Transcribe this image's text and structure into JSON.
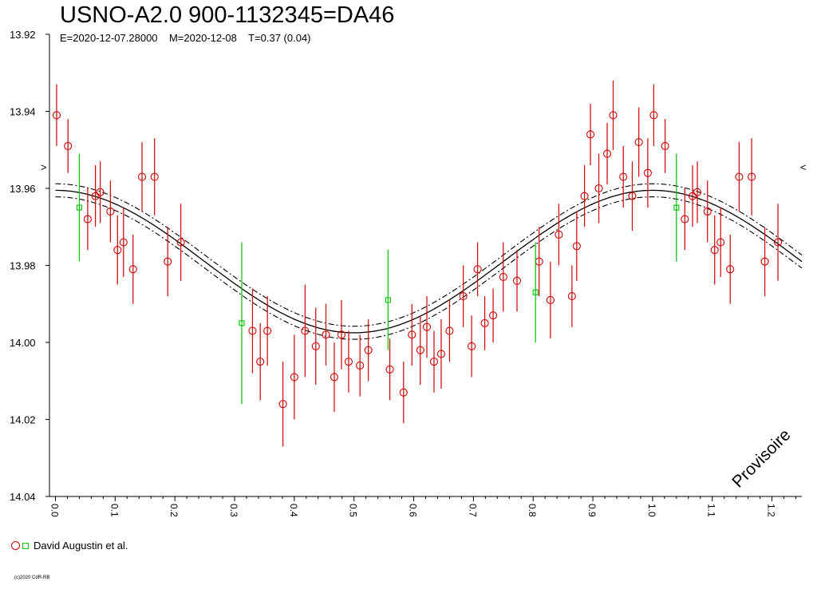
{
  "header": {
    "title": "USNO-A2.0 900-1132345=DA46",
    "subtitle": "E=2020-12-07.28000    M=2020-12-08    T=0.37 (0.04)"
  },
  "legend": {
    "label": "David Augustin et al."
  },
  "watermark": "Provisoire",
  "copyright": "(c)2020 CdR-RB",
  "edge_marks": {
    "left": ">",
    "right": "<"
  },
  "colors": {
    "obs_red": "#d00000",
    "obs_green": "#00c000",
    "curve": "#000000"
  },
  "chart_data": {
    "type": "scatter",
    "title": "USNO-A2.0 900-1132345=DA46",
    "xlabel": "",
    "ylabel": "",
    "xlim": [
      -0.01,
      1.25
    ],
    "ylim": [
      13.92,
      14.04
    ],
    "y_inverted": true,
    "x_ticks": [
      "0.0",
      "0.1",
      "0.2",
      "0.3",
      "0.4",
      "0.5",
      "0.6",
      "0.7",
      "0.8",
      "0.9",
      "1.0",
      "1.1",
      "1.2"
    ],
    "y_ticks": [
      "13.92",
      "13.94",
      "13.96",
      "13.98",
      "14.00",
      "14.02",
      "14.04"
    ],
    "grid": false,
    "legend_position": "bottom-left",
    "fit": {
      "type": "sinusoid",
      "mean": 13.979,
      "amplitude": 0.0185,
      "max_phase": 1.0,
      "band": 0.0017,
      "note": "solid fit with dash-dot confidence bands"
    },
    "series": [
      {
        "name": "David Augustin et al.",
        "marker": "circle",
        "color": "#d00000",
        "points": [
          {
            "x": 0.002,
            "y": 13.941,
            "err": 0.008
          },
          {
            "x": 0.021,
            "y": 13.949,
            "err": 0.007
          },
          {
            "x": 0.054,
            "y": 13.968,
            "err": 0.008
          },
          {
            "x": 0.067,
            "y": 13.962,
            "err": 0.008
          },
          {
            "x": 0.075,
            "y": 13.961,
            "err": 0.008
          },
          {
            "x": 0.092,
            "y": 13.966,
            "err": 0.008
          },
          {
            "x": 0.104,
            "y": 13.976,
            "err": 0.009
          },
          {
            "x": 0.114,
            "y": 13.974,
            "err": 0.009
          },
          {
            "x": 0.13,
            "y": 13.981,
            "err": 0.009
          },
          {
            "x": 0.145,
            "y": 13.957,
            "err": 0.009
          },
          {
            "x": 0.166,
            "y": 13.957,
            "err": 0.01
          },
          {
            "x": 0.188,
            "y": 13.979,
            "err": 0.009
          },
          {
            "x": 0.21,
            "y": 13.974,
            "err": 0.01
          },
          {
            "x": 0.33,
            "y": 13.997,
            "err": 0.011
          },
          {
            "x": 0.343,
            "y": 14.005,
            "err": 0.01
          },
          {
            "x": 0.355,
            "y": 13.997,
            "err": 0.009
          },
          {
            "x": 0.381,
            "y": 14.016,
            "err": 0.011
          },
          {
            "x": 0.4,
            "y": 14.009,
            "err": 0.011
          },
          {
            "x": 0.418,
            "y": 13.997,
            "err": 0.012
          },
          {
            "x": 0.436,
            "y": 14.001,
            "err": 0.01
          },
          {
            "x": 0.453,
            "y": 13.998,
            "err": 0.008
          },
          {
            "x": 0.467,
            "y": 14.009,
            "err": 0.009
          },
          {
            "x": 0.479,
            "y": 13.998,
            "err": 0.009
          },
          {
            "x": 0.491,
            "y": 14.005,
            "err": 0.008
          },
          {
            "x": 0.51,
            "y": 14.006,
            "err": 0.008
          },
          {
            "x": 0.524,
            "y": 14.002,
            "err": 0.008
          },
          {
            "x": 0.56,
            "y": 14.007,
            "err": 0.008
          },
          {
            "x": 0.583,
            "y": 14.013,
            "err": 0.008
          },
          {
            "x": 0.597,
            "y": 13.998,
            "err": 0.008
          },
          {
            "x": 0.611,
            "y": 14.002,
            "err": 0.009
          },
          {
            "x": 0.622,
            "y": 13.996,
            "err": 0.008
          },
          {
            "x": 0.634,
            "y": 14.005,
            "err": 0.008
          },
          {
            "x": 0.646,
            "y": 14.003,
            "err": 0.009
          },
          {
            "x": 0.66,
            "y": 13.997,
            "err": 0.008
          },
          {
            "x": 0.683,
            "y": 13.988,
            "err": 0.008
          },
          {
            "x": 0.697,
            "y": 14.001,
            "err": 0.008
          },
          {
            "x": 0.707,
            "y": 13.981,
            "err": 0.007
          },
          {
            "x": 0.719,
            "y": 13.995,
            "err": 0.007
          },
          {
            "x": 0.733,
            "y": 13.993,
            "err": 0.007
          },
          {
            "x": 0.75,
            "y": 13.983,
            "err": 0.009
          },
          {
            "x": 0.773,
            "y": 13.984,
            "err": 0.008
          },
          {
            "x": 0.81,
            "y": 13.979,
            "err": 0.009
          },
          {
            "x": 0.829,
            "y": 13.989,
            "err": 0.01
          },
          {
            "x": 0.843,
            "y": 13.972,
            "err": 0.008
          },
          {
            "x": 0.865,
            "y": 13.988,
            "err": 0.008
          },
          {
            "x": 0.873,
            "y": 13.975,
            "err": 0.009
          },
          {
            "x": 0.886,
            "y": 13.962,
            "err": 0.008
          },
          {
            "x": 0.896,
            "y": 13.946,
            "err": 0.008
          },
          {
            "x": 0.91,
            "y": 13.96,
            "err": 0.009
          },
          {
            "x": 0.924,
            "y": 13.951,
            "err": 0.008
          },
          {
            "x": 0.934,
            "y": 13.941,
            "err": 0.009
          },
          {
            "x": 0.951,
            "y": 13.957,
            "err": 0.008
          },
          {
            "x": 0.966,
            "y": 13.962,
            "err": 0.009
          },
          {
            "x": 0.977,
            "y": 13.948,
            "err": 0.009
          },
          {
            "x": 0.992,
            "y": 13.956,
            "err": 0.009
          },
          {
            "x": 1.002,
            "y": 13.941,
            "err": 0.008
          },
          {
            "x": 1.021,
            "y": 13.949,
            "err": 0.007
          },
          {
            "x": 1.054,
            "y": 13.968,
            "err": 0.008
          },
          {
            "x": 1.067,
            "y": 13.962,
            "err": 0.008
          },
          {
            "x": 1.075,
            "y": 13.961,
            "err": 0.008
          },
          {
            "x": 1.092,
            "y": 13.966,
            "err": 0.008
          },
          {
            "x": 1.104,
            "y": 13.976,
            "err": 0.009
          },
          {
            "x": 1.114,
            "y": 13.974,
            "err": 0.009
          },
          {
            "x": 1.13,
            "y": 13.981,
            "err": 0.009
          },
          {
            "x": 1.145,
            "y": 13.957,
            "err": 0.009
          },
          {
            "x": 1.166,
            "y": 13.957,
            "err": 0.01
          },
          {
            "x": 1.188,
            "y": 13.979,
            "err": 0.009
          },
          {
            "x": 1.21,
            "y": 13.974,
            "err": 0.01
          }
        ]
      },
      {
        "name": "David Augustin et al.",
        "marker": "square",
        "color": "#00c000",
        "points": [
          {
            "x": 0.04,
            "y": 13.965,
            "err": 0.014
          },
          {
            "x": 0.312,
            "y": 13.995,
            "err": 0.021
          },
          {
            "x": 0.557,
            "y": 13.989,
            "err": 0.013
          },
          {
            "x": 0.804,
            "y": 13.987,
            "err": 0.013
          },
          {
            "x": 1.04,
            "y": 13.965,
            "err": 0.014
          }
        ]
      }
    ]
  }
}
